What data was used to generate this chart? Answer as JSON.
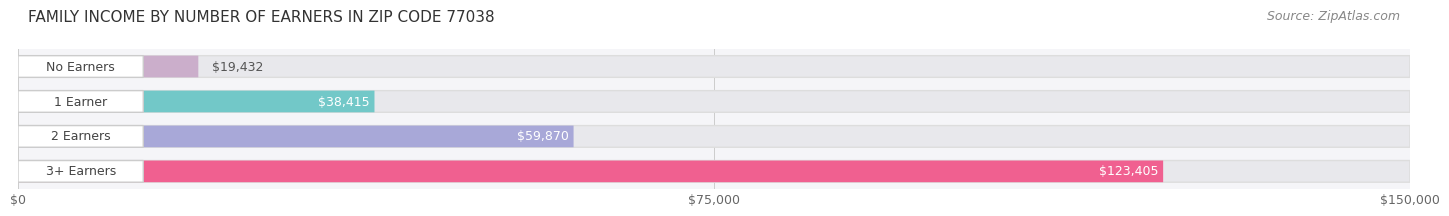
{
  "title": "FAMILY INCOME BY NUMBER OF EARNERS IN ZIP CODE 77038",
  "source": "Source: ZipAtlas.com",
  "categories": [
    "No Earners",
    "1 Earner",
    "2 Earners",
    "3+ Earners"
  ],
  "values": [
    19432,
    38415,
    59870,
    123405
  ],
  "bar_colors": [
    "#cbaecb",
    "#72c8c8",
    "#a8a8d8",
    "#f06090"
  ],
  "bar_bg_color": "#e8e8ec",
  "value_labels": [
    "$19,432",
    "$38,415",
    "$59,870",
    "$123,405"
  ],
  "xlim": [
    0,
    150000
  ],
  "xticks": [
    0,
    75000,
    150000
  ],
  "xtick_labels": [
    "$0",
    "$75,000",
    "$150,000"
  ],
  "background_color": "#ffffff",
  "plot_bg_color": "#f5f5f8",
  "title_fontsize": 11,
  "source_fontsize": 9,
  "label_fontsize": 9,
  "value_fontsize": 9,
  "tick_fontsize": 9,
  "bar_height": 0.62,
  "label_pill_color": "#ffffff",
  "label_pill_edge": "#dddddd"
}
